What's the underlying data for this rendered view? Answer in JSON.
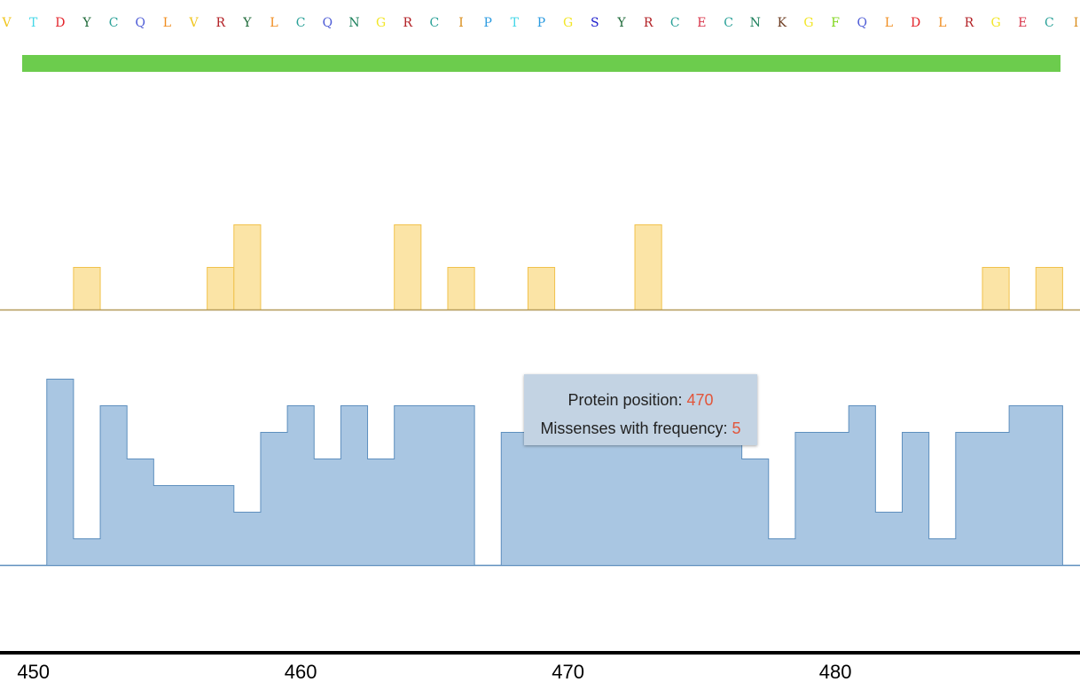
{
  "sequence": {
    "letters": [
      "V",
      "T",
      "D",
      "Y",
      "C",
      "Q",
      "L",
      "V",
      "R",
      "Y",
      "L",
      "C",
      "Q",
      "N",
      "G",
      "R",
      "C",
      "I",
      "P",
      "T",
      "P",
      "G",
      "S",
      "Y",
      "R",
      "C",
      "E",
      "C",
      "N",
      "K",
      "G",
      "F",
      "Q",
      "L",
      "D",
      "L",
      "R",
      "G",
      "E",
      "C",
      "I"
    ],
    "colors": {
      "V": "#f0c419",
      "T": "#44d7e8",
      "D": "#e3242b",
      "Y": "#1f6b3a",
      "C": "#2aa198",
      "Q": "#4d5bd6",
      "L": "#f08c1e",
      "R": "#b21f24",
      "N": "#1a7f5a",
      "G": "#f2e629",
      "I": "#d98c1a",
      "P": "#2b9be0",
      "S": "#1a1acc",
      "E": "#d8344a",
      "K": "#6b3a1e",
      "F": "#7fd61a"
    }
  },
  "domain_bar": {
    "color": "#6ccc4d"
  },
  "chart_data": [
    {
      "type": "bar",
      "name": "yellow-track",
      "x": [
        450,
        451,
        452,
        453,
        454,
        455,
        456,
        457,
        458,
        459,
        460,
        461,
        462,
        463,
        464,
        465,
        466,
        467,
        468,
        469,
        470,
        471,
        472,
        473,
        474,
        475,
        476,
        477,
        478,
        479,
        480,
        481,
        482,
        483,
        484,
        485,
        486,
        487,
        488
      ],
      "values": [
        0,
        0,
        1,
        0,
        0,
        0,
        0,
        1,
        2,
        0,
        0,
        0,
        0,
        0,
        2,
        0,
        1,
        0,
        0,
        1,
        0,
        0,
        0,
        2,
        0,
        0,
        0,
        0,
        0,
        0,
        0,
        0,
        0,
        0,
        0,
        0,
        1,
        0,
        1
      ],
      "xlim": [
        448.75,
        489.15
      ],
      "ylim": [
        0,
        2
      ],
      "color": "#fbe4a6",
      "stroke": "#f1c24c",
      "baseline_color": "#b49a5a"
    },
    {
      "type": "area",
      "name": "missense-frequency",
      "x": [
        450,
        451,
        452,
        453,
        454,
        455,
        456,
        457,
        458,
        459,
        460,
        461,
        462,
        463,
        464,
        465,
        466,
        467,
        468,
        469,
        470,
        471,
        472,
        473,
        474,
        475,
        476,
        477,
        478,
        479,
        480,
        481,
        482,
        483,
        484,
        485,
        486,
        487,
        488
      ],
      "values": [
        0,
        7,
        1,
        6,
        4,
        3,
        3,
        3,
        2,
        5,
        6,
        4,
        6,
        4,
        6,
        6,
        6,
        0,
        5,
        5,
        5,
        5,
        5,
        5,
        5,
        5,
        5,
        4,
        1,
        5,
        5,
        6,
        2,
        5,
        1,
        5,
        5,
        6,
        6
      ],
      "xlim": [
        448.75,
        489.15
      ],
      "ylim": [
        0,
        7
      ],
      "color": "#a9c6e2",
      "stroke": "#5e8fbe"
    }
  ],
  "axis": {
    "ticks": [
      450,
      460,
      470,
      480
    ],
    "xlim": [
      448.75,
      489.15
    ]
  },
  "tooltip": {
    "position_label": "Protein position: ",
    "position_value": "470",
    "frequency_label": "Missenses with frequency: ",
    "frequency_value": "5"
  }
}
